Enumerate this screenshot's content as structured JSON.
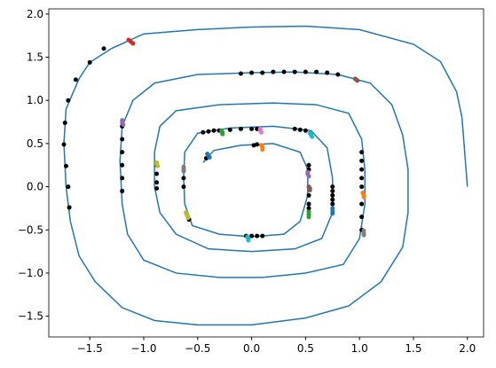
{
  "chart_data": {
    "type": "line",
    "xlim": [
      -1.88,
      2.15
    ],
    "ylim": [
      -1.74,
      2.06
    ],
    "xticks": [
      {
        "value": -1.5,
        "label": "−1.5"
      },
      {
        "value": -1.0,
        "label": "−1.0"
      },
      {
        "value": -0.5,
        "label": "−0.5"
      },
      {
        "value": 0,
        "label": "0.0"
      },
      {
        "value": 0.5,
        "label": "0.5"
      },
      {
        "value": 1.0,
        "label": "1.0"
      },
      {
        "value": 1.5,
        "label": "1.5"
      },
      {
        "value": 2.0,
        "label": "2.0"
      }
    ],
    "yticks": [
      {
        "value": -1.5,
        "label": "−1.5"
      },
      {
        "value": -1.0,
        "label": "−1.0"
      },
      {
        "value": -0.5,
        "label": "−0.5"
      },
      {
        "value": 0,
        "label": "0.0"
      },
      {
        "value": 0.5,
        "label": "0.5"
      },
      {
        "value": 1.0,
        "label": "1.0"
      },
      {
        "value": 1.5,
        "label": "1.5"
      },
      {
        "value": 2.0,
        "label": "2.0"
      }
    ],
    "series": [
      {
        "type": "line",
        "color": "#1f77b4",
        "x": [
          2.0,
          1.95,
          1.9,
          1.75,
          1.5,
          1.0,
          0.5,
          0,
          -0.5,
          -1.0,
          -1.3,
          -1.5,
          -1.6,
          -1.72,
          -1.74,
          -1.72,
          -1.68,
          -1.6,
          -1.45,
          -1.2,
          -0.9,
          -0.5,
          0,
          0.5,
          0.9,
          1.2,
          1.4,
          1.45,
          1.45,
          1.4,
          1.3,
          1.1,
          0.8,
          0.4,
          0,
          -0.5,
          -0.9,
          -1.1,
          -1.2,
          -1.22,
          -1.2,
          -1.15,
          -1.0,
          -0.7,
          -0.3,
          0.1,
          0.5,
          0.85,
          1.0,
          1.05,
          1.05,
          1.02,
          0.9,
          0.6,
          0.2,
          -0.3,
          -0.7,
          -0.85,
          -0.9,
          -0.9,
          -0.85,
          -0.7,
          -0.4,
          0,
          0.4,
          0.65,
          0.75,
          0.75,
          0.7,
          0.55,
          0.2,
          -0.2,
          -0.5,
          -0.62,
          -0.63,
          -0.62,
          -0.55,
          -0.3,
          0,
          0.3,
          0.45,
          0.52,
          0.52,
          0.45,
          0.2,
          -0.1,
          -0.35,
          -0.45
        ],
        "values": [
          0.0,
          0.8,
          1.1,
          1.45,
          1.65,
          1.82,
          1.86,
          1.85,
          1.82,
          1.77,
          1.6,
          1.44,
          1.25,
          0.9,
          0.5,
          0,
          -0.4,
          -0.8,
          -1.1,
          -1.4,
          -1.55,
          -1.6,
          -1.6,
          -1.52,
          -1.38,
          -1.1,
          -0.7,
          -0.3,
          0.2,
          0.6,
          0.95,
          1.2,
          1.3,
          1.33,
          1.32,
          1.3,
          1.2,
          1.0,
          0.7,
          0.3,
          -0.2,
          -0.55,
          -0.85,
          -1.0,
          -1.05,
          -1.05,
          -1.0,
          -0.9,
          -0.6,
          -0.2,
          0.2,
          0.55,
          0.85,
          0.95,
          0.97,
          0.95,
          0.88,
          0.7,
          0.4,
          0,
          -0.3,
          -0.55,
          -0.72,
          -0.75,
          -0.72,
          -0.6,
          -0.3,
          0.1,
          0.45,
          0.65,
          0.7,
          0.68,
          0.62,
          0.4,
          0.1,
          -0.2,
          -0.45,
          -0.55,
          -0.58,
          -0.55,
          -0.4,
          -0.1,
          0.2,
          0.4,
          0.5,
          0.48,
          0.42,
          0.28
        ]
      },
      {
        "type": "scatter",
        "color": "#000000",
        "x": [
          -1.37,
          -1.5,
          -1.63,
          -1.7,
          -1.73,
          -1.74,
          -1.72,
          -1.7,
          -1.69,
          -0.1,
          0.0,
          0.1,
          0.2,
          0.3,
          0.4,
          0.5,
          0.6,
          0.7,
          0.8,
          -1.2,
          -1.2,
          -1.2,
          -1.2,
          -1.2,
          -1.2,
          -0.45,
          -0.4,
          -0.35,
          -0.3,
          -0.2,
          -0.1,
          0.0,
          0.05,
          0.4,
          0.45,
          0.5,
          -0.88,
          -0.88,
          -0.88,
          -0.88,
          -0.63,
          -0.63,
          -0.63,
          1.02,
          1.02,
          1.02,
          1.02,
          1.02,
          1.02,
          1.02,
          1.02,
          0.75,
          0.75,
          0.75,
          0.75,
          0.75,
          0.53,
          0.53,
          0.53,
          0.53,
          0.53,
          -0.05,
          0.0,
          0.05,
          0.1,
          -0.58,
          -0.42,
          0.02,
          0.05
        ],
        "values": [
          1.6,
          1.44,
          1.24,
          1.0,
          0.74,
          0.49,
          0.24,
          0.0,
          -0.24,
          1.31,
          1.32,
          1.32,
          1.33,
          1.33,
          1.33,
          1.33,
          1.33,
          1.32,
          1.3,
          0.7,
          0.55,
          0.4,
          0.25,
          0.1,
          -0.05,
          0.63,
          0.64,
          0.65,
          0.65,
          0.66,
          0.67,
          0.67,
          0.67,
          0.67,
          0.66,
          0.65,
          0.25,
          0.15,
          0.05,
          -0.02,
          0.2,
          0.1,
          0.0,
          0.4,
          0.3,
          0.2,
          0.1,
          0.0,
          -0.2,
          -0.35,
          -0.5,
          0.0,
          -0.05,
          -0.1,
          -0.15,
          -0.2,
          0.25,
          0.2,
          -0.1,
          -0.2,
          -0.25,
          -0.57,
          -0.57,
          -0.57,
          -0.57,
          -0.38,
          0.33,
          0.48,
          0.49
        ]
      },
      {
        "type": "scatter",
        "color": "#d62728",
        "x": [
          -1.14,
          -1.12,
          -1.1
        ],
        "values": [
          1.7,
          1.68,
          1.66
        ]
      },
      {
        "type": "scatter",
        "color": "#8c564b",
        "x": [
          0.96,
          0.97,
          0.98
        ],
        "values": [
          1.25,
          1.24,
          1.23
        ]
      },
      {
        "type": "scatter",
        "color": "#9467bd",
        "x": [
          -1.2,
          -1.2,
          -1.19
        ],
        "values": [
          0.77,
          0.74,
          0.72
        ]
      },
      {
        "type": "scatter",
        "color": "#2ca02c",
        "x": [
          -0.28,
          -0.27,
          -0.27
        ],
        "values": [
          0.65,
          0.63,
          0.61
        ]
      },
      {
        "type": "scatter",
        "color": "#e377c2",
        "x": [
          0.08,
          0.08,
          0.09
        ],
        "values": [
          0.67,
          0.65,
          0.63
        ]
      },
      {
        "type": "scatter",
        "color": "#17becf",
        "x": [
          0.54,
          0.55,
          0.56
        ],
        "values": [
          0.62,
          0.6,
          0.58
        ]
      },
      {
        "type": "scatter",
        "color": "#ff7f0e",
        "x": [
          0.09,
          0.1,
          0.1
        ],
        "values": [
          0.48,
          0.46,
          0.43
        ]
      },
      {
        "type": "scatter",
        "color": "#1f77b4",
        "x": [
          -0.41,
          -0.4,
          -0.39
        ],
        "values": [
          0.38,
          0.36,
          0.34
        ]
      },
      {
        "type": "scatter",
        "color": "#bcbd22",
        "x": [
          -0.88,
          -0.88,
          -0.87
        ],
        "values": [
          0.28,
          0.26,
          0.24
        ]
      },
      {
        "type": "scatter",
        "color": "#7f7f7f",
        "x": [
          -0.63,
          -0.63,
          -0.63
        ],
        "values": [
          0.23,
          0.2,
          0.18
        ]
      },
      {
        "type": "scatter",
        "color": "#9467bd",
        "x": [
          0.52,
          0.52,
          0.53
        ],
        "values": [
          0.17,
          0.15,
          0.12
        ]
      },
      {
        "type": "scatter",
        "color": "#8c564b",
        "x": [
          0.53,
          0.54,
          0.54
        ],
        "values": [
          0.0,
          -0.02,
          -0.04
        ]
      },
      {
        "type": "scatter",
        "color": "#ff7f0e",
        "x": [
          1.03,
          1.04,
          1.04
        ],
        "values": [
          -0.07,
          -0.1,
          -0.12
        ]
      },
      {
        "type": "scatter",
        "color": "#1f77b4",
        "x": [
          0.75,
          0.75,
          0.75
        ],
        "values": [
          -0.25,
          -0.28,
          -0.31
        ]
      },
      {
        "type": "scatter",
        "color": "#2ca02c",
        "x": [
          0.53,
          0.53,
          0.53
        ],
        "values": [
          -0.29,
          -0.32,
          -0.35
        ]
      },
      {
        "type": "scatter",
        "color": "#bcbd22",
        "x": [
          -0.61,
          -0.6,
          -0.59
        ],
        "values": [
          -0.3,
          -0.33,
          -0.36
        ]
      },
      {
        "type": "scatter",
        "color": "#7f7f7f",
        "x": [
          1.04,
          1.04,
          1.04
        ],
        "values": [
          -0.51,
          -0.54,
          -0.56
        ]
      },
      {
        "type": "scatter",
        "color": "#17becf",
        "x": [
          -0.04,
          -0.03,
          -0.03
        ],
        "values": [
          -0.58,
          -0.6,
          -0.62
        ]
      }
    ]
  }
}
